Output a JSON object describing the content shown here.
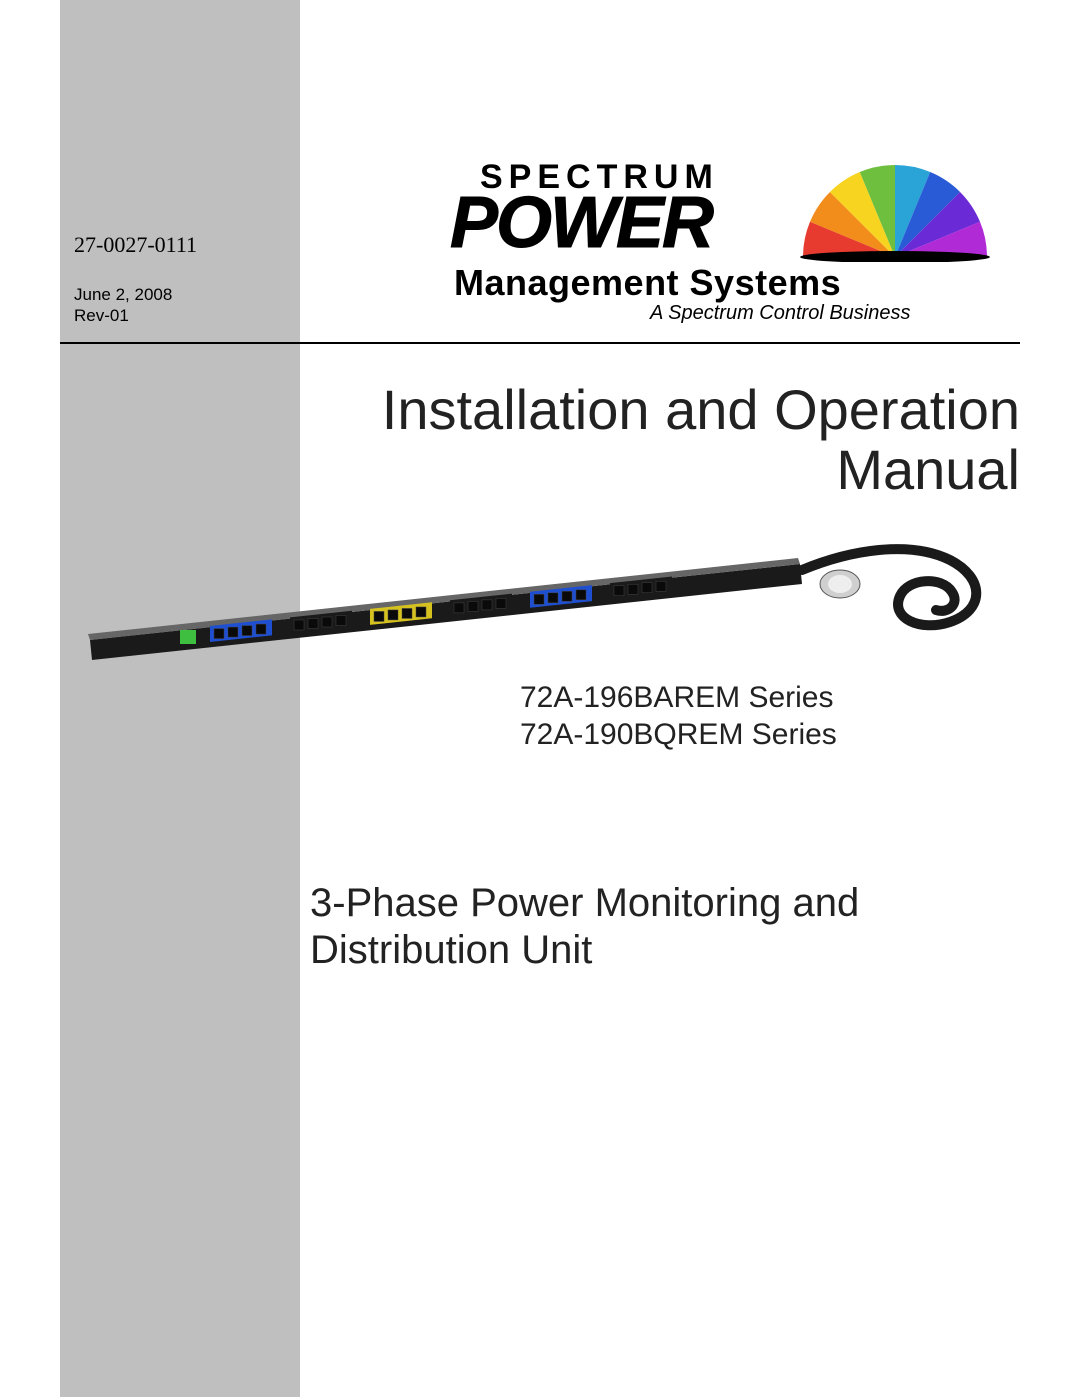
{
  "sidebar": {
    "bg_color": "#bfbfbf",
    "doc_number": "27-0027-0111",
    "date": "June 2, 2008",
    "revision": "Rev-01"
  },
  "logo": {
    "line1": "SPECTRUM",
    "line2": "POWER",
    "line3": "Management Systems",
    "tagline": "A Spectrum Control Business",
    "arc_colors": [
      "#e63b2e",
      "#f28c1b",
      "#f7d41f",
      "#6fbf3f",
      "#2aa4d6",
      "#2a5bd6",
      "#6a2ad6",
      "#b02ad6"
    ]
  },
  "rule_color": "#000000",
  "title": "Installation and Operation Manual",
  "pdu": {
    "body_color": "#1a1a1a",
    "outlet_group_colors": [
      "#1f4fd1",
      "#1a1a1a",
      "#d6c21f",
      "#1a1a1a",
      "#1f4fd1",
      "#1a1a1a"
    ],
    "outlets_per_group": 4,
    "led_color": "#3fbf3f",
    "cable_color": "#1a1a1a",
    "plug_body": "#cfcfcf"
  },
  "series": {
    "line1": "72A-196BAREM Series",
    "line2": "72A-190BQREM Series"
  },
  "description": "3-Phase Power Monitoring and Distribution Unit",
  "page_bg": "#ffffff",
  "text_color": "#222222"
}
